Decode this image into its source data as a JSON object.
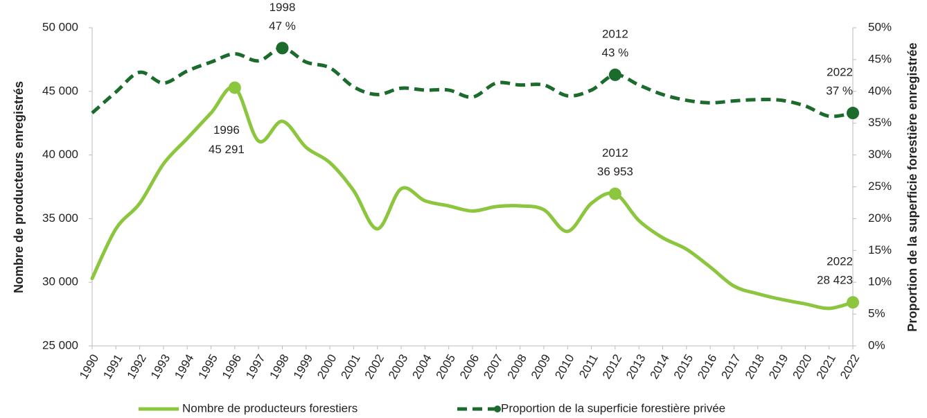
{
  "chart_data": {
    "type": "line",
    "y_label": "Nombre de producteurs enregistrés",
    "y2_label": "Proportion de la superficie forestière enregistrée",
    "categories": [
      "1990",
      "1991",
      "1992",
      "1993",
      "1994",
      "1995",
      "1996",
      "1997",
      "1998",
      "1999",
      "2000",
      "2001",
      "2002",
      "2003",
      "2004",
      "2005",
      "2006",
      "2007",
      "2008",
      "2009",
      "2010",
      "2011",
      "2012",
      "2013",
      "2014",
      "2015",
      "2016",
      "2017",
      "2018",
      "2019",
      "2020",
      "2021",
      "2022"
    ],
    "series": [
      {
        "name": "Nombre de producteurs forestiers",
        "color": "#8cc63f",
        "style": "solid",
        "values": [
          30300,
          34200,
          36200,
          39300,
          41300,
          43300,
          45291,
          41100,
          42650,
          40600,
          39400,
          37200,
          34200,
          37350,
          36400,
          36000,
          35600,
          35950,
          36000,
          35700,
          34000,
          36200,
          36953,
          34850,
          33500,
          32600,
          31200,
          29700,
          29100,
          28650,
          28300,
          27950,
          28423
        ],
        "value_labels": [
          null,
          null,
          null,
          null,
          null,
          null,
          "45 291",
          null,
          null,
          null,
          null,
          null,
          null,
          null,
          null,
          null,
          null,
          null,
          null,
          null,
          null,
          null,
          "36 953",
          null,
          null,
          null,
          null,
          null,
          null,
          null,
          null,
          null,
          "28 423"
        ]
      },
      {
        "name": "Proportion de la superficie forestière privée",
        "color": "#1b6b2c",
        "style": "dashed",
        "axis": "y2",
        "values": [
          36.6,
          39.9,
          43.0,
          41.3,
          43.2,
          44.6,
          45.9,
          44.8,
          46.8,
          44.6,
          43.7,
          40.7,
          39.5,
          40.5,
          40.2,
          40.2,
          39.1,
          41.3,
          41.0,
          41.0,
          39.3,
          40.2,
          42.6,
          41.0,
          39.5,
          38.6,
          38.2,
          38.5,
          38.7,
          38.6,
          37.7,
          36.1,
          36.6
        ],
        "value_labels": [
          null,
          null,
          null,
          null,
          null,
          null,
          null,
          null,
          "47 %",
          null,
          null,
          null,
          null,
          null,
          null,
          null,
          null,
          null,
          null,
          null,
          null,
          null,
          "43 %",
          null,
          null,
          null,
          null,
          null,
          null,
          null,
          null,
          null,
          "37 %"
        ]
      }
    ],
    "ylim": [
      25000,
      50000
    ],
    "yticks": [
      {
        "value": 25000,
        "label": "25 000"
      },
      {
        "value": 30000,
        "label": "30 000"
      },
      {
        "value": 35000,
        "label": "35 000"
      },
      {
        "value": 40000,
        "label": "40 000"
      },
      {
        "value": 45000,
        "label": "45 000"
      },
      {
        "value": 50000,
        "label": "50 000"
      }
    ],
    "y2lim": [
      0,
      50
    ],
    "y2ticks": [
      {
        "value": 0,
        "label": "0%"
      },
      {
        "value": 5,
        "label": "5%"
      },
      {
        "value": 10,
        "label": "10%"
      },
      {
        "value": 15,
        "label": "15%"
      },
      {
        "value": 20,
        "label": "20%"
      },
      {
        "value": 25,
        "label": "25%"
      },
      {
        "value": 30,
        "label": "30%"
      },
      {
        "value": 35,
        "label": "35%"
      },
      {
        "value": 40,
        "label": "40%"
      },
      {
        "value": 45,
        "label": "45%"
      },
      {
        "value": 50,
        "label": "50%"
      }
    ],
    "legend": "bottom"
  }
}
